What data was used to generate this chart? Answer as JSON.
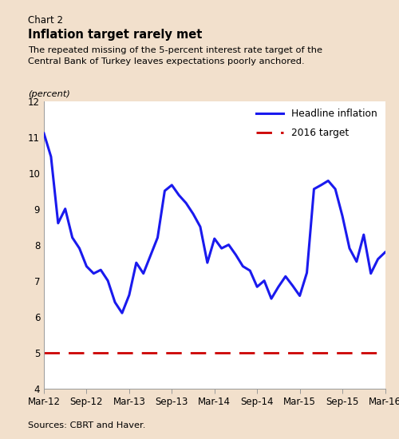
{
  "chart_label": "Chart 2",
  "title": "Inflation target rarely met",
  "subtitle": "The repeated missing of the 5-percent interest rate target of the\nCentral Bank of Turkey leaves expectations poorly anchored.",
  "ylabel": "(percent)",
  "source": "Sources: CBRT and Haver.",
  "background_color": "#f2e0cc",
  "plot_bg_color": "#ffffff",
  "ylim": [
    4,
    12
  ],
  "yticks": [
    4,
    5,
    6,
    7,
    8,
    9,
    10,
    11,
    12
  ],
  "target_value": 5,
  "line_color": "#1a1aee",
  "target_color": "#cc0000",
  "line_width": 2.2,
  "x_labels": [
    "Mar-12",
    "Sep-12",
    "Mar-13",
    "Sep-13",
    "Mar-14",
    "Sep-14",
    "Mar-15",
    "Sep-15",
    "Mar-16"
  ],
  "headline_inflation": [
    11.1,
    10.45,
    8.6,
    9.0,
    8.2,
    7.9,
    7.4,
    7.2,
    7.3,
    7.0,
    6.4,
    6.1,
    6.6,
    7.5,
    7.2,
    7.7,
    8.2,
    9.5,
    9.66,
    9.38,
    9.16,
    8.86,
    8.5,
    7.5,
    8.17,
    7.9,
    8.0,
    7.72,
    7.4,
    7.28,
    6.83,
    7.0,
    6.5,
    6.83,
    7.12,
    6.86,
    6.58,
    7.22,
    9.55,
    9.66,
    9.78,
    9.55,
    8.8,
    7.9,
    7.53,
    8.28,
    7.2,
    7.6,
    7.79
  ],
  "n_points": 49,
  "legend_line_label": "Headline inflation",
  "legend_target_label": "2016 target"
}
